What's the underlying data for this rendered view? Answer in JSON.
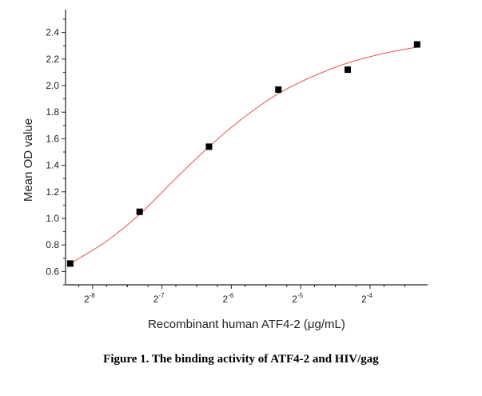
{
  "chart_data": {
    "type": "scatter",
    "title": "",
    "xlabel": "Recombinant human ATF4-2 (μg/mL)",
    "ylabel": "Mean OD value",
    "x_scale": "log2",
    "xlim_log2": [
      -8.39,
      -3.17
    ],
    "ylim": [
      0.5,
      2.5
    ],
    "x_ticks": [
      {
        "exp": -8,
        "label": "2",
        "sup": "-8"
      },
      {
        "exp": -7,
        "label": "2",
        "sup": "-7"
      },
      {
        "exp": -6,
        "label": "2",
        "sup": "-6"
      },
      {
        "exp": -5,
        "label": "2",
        "sup": "-5"
      },
      {
        "exp": -4,
        "label": "2",
        "sup": "-4"
      }
    ],
    "y_ticks": [
      "0.6",
      "0.8",
      "1.0",
      "1.2",
      "1.4",
      "1.6",
      "1.8",
      "2.0",
      "2.2",
      "2.4"
    ],
    "grid": false,
    "points": {
      "marker": "square",
      "color": "#000000",
      "x": [
        0.003125,
        0.00625,
        0.0125,
        0.025,
        0.05,
        0.1
      ],
      "y": [
        0.66,
        1.05,
        1.54,
        1.97,
        2.12,
        2.31
      ]
    },
    "fit_curve": {
      "color": "#e8534f",
      "x": [
        0.003125,
        0.00442,
        0.00625,
        0.00884,
        0.0125,
        0.0177,
        0.025,
        0.0354,
        0.05,
        0.0707,
        0.1
      ],
      "y": [
        0.66,
        0.82,
        1.03,
        1.29,
        1.54,
        1.76,
        1.94,
        2.07,
        2.17,
        2.24,
        2.29
      ]
    }
  },
  "caption": "Figure 1. The binding activity of ATF4-2 and HIV/gag"
}
